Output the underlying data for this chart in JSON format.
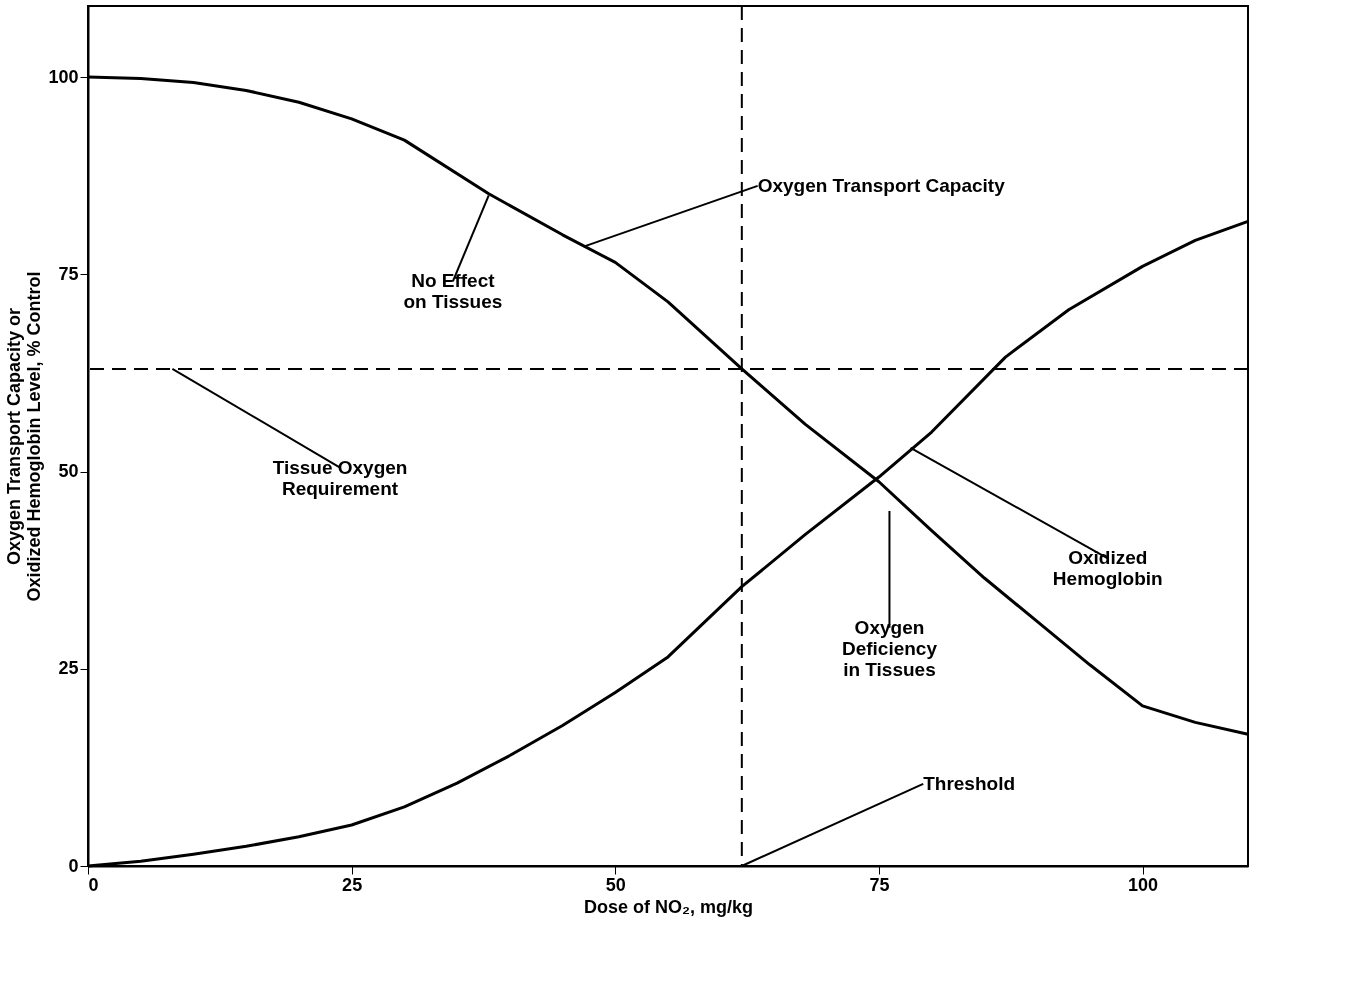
{
  "chart_data": {
    "type": "line",
    "xlabel": "Dose of NO₂, mg/kg",
    "ylabel": "Oxygen Transport Capacity or\nOxidized Hemoglobin Level, % Control",
    "xlim": [
      0,
      110
    ],
    "ylim": [
      0,
      109
    ],
    "xticks": [
      0,
      25,
      50,
      75,
      100
    ],
    "yticks": [
      0,
      25,
      50,
      75,
      100
    ],
    "grid": false,
    "marker": "none",
    "line_style": "solid",
    "series": [
      {
        "color": "#000000",
        "x": [
          0,
          5,
          10,
          15,
          20,
          25,
          30,
          38,
          45,
          50,
          55,
          62,
          68,
          75,
          80,
          85,
          90,
          95,
          100,
          105,
          110
        ],
        "values": [
          100,
          99.8,
          99.3,
          98.3,
          96.8,
          94.7,
          92,
          85.2,
          80,
          76.5,
          71.5,
          63,
          56,
          48.7,
          42.5,
          36.5,
          31,
          25.5,
          20.3,
          18.2,
          16.7
        ]
      },
      {
        "color": "#000000",
        "x": [
          0,
          5,
          10,
          15,
          20,
          25,
          30,
          35,
          40,
          45,
          50,
          55,
          62,
          68,
          75,
          80,
          87,
          93,
          100,
          105,
          110
        ],
        "values": [
          0,
          0.6,
          1.5,
          2.5,
          3.7,
          5.2,
          7.5,
          10.5,
          14,
          17.8,
          22,
          26.5,
          35.4,
          42,
          49.3,
          55,
          64.5,
          70.5,
          76,
          79.3,
          81.7
        ]
      }
    ],
    "ref_lines": [
      {
        "axis": "y",
        "value": 63,
        "line_style": "dashed",
        "color": "#000000"
      },
      {
        "axis": "x",
        "value": 62,
        "line_style": "dashed",
        "color": "#000000"
      }
    ],
    "annotations": [
      {
        "text": "Oxygen Transport Capacity",
        "x": 47,
        "y": 78.5
      },
      {
        "text": "No Effect\non Tissues",
        "x": 38,
        "y": 85
      },
      {
        "text": "Tissue Oxygen\nRequirement",
        "x": 8,
        "y": 63
      },
      {
        "text": "Oxidized\nHemoglobin",
        "x": 78,
        "y": 53
      },
      "Oxygen\nDeficiency\nin Tissues",
      {
        "text": "Threshold",
        "x": 62,
        "y": 0
      }
    ]
  }
}
